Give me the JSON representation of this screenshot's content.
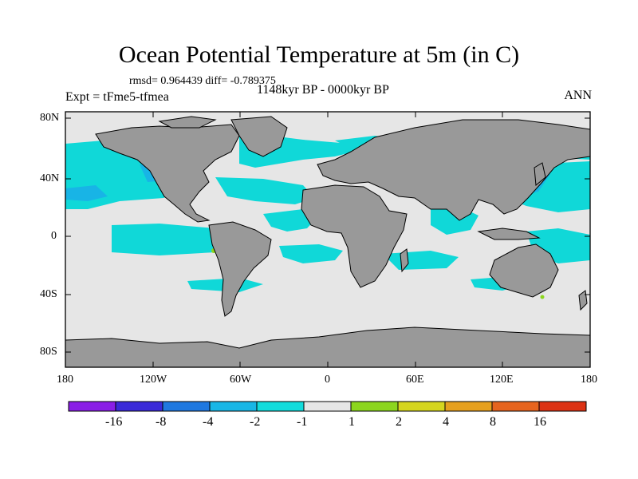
{
  "title": "Ocean Potential Temperature at 5m (in C)",
  "stats": "rmsd= 0.964439 diff= -0.789375",
  "experiment": "Expt = tFme5-tfmea",
  "period": "1148kyr BP - 0000kyr BP",
  "season": "ANN",
  "lat_labels": [
    "80N",
    "40N",
    "0",
    "40S",
    "80S"
  ],
  "lon_labels": [
    "180",
    "120W",
    "60W",
    "0",
    "60E",
    "120E",
    "180"
  ],
  "colorbar": {
    "labels": [
      "-16",
      "-8",
      "-4",
      "-2",
      "-1",
      "1",
      "2",
      "4",
      "8",
      "16"
    ],
    "colors": [
      "#8a1ee6",
      "#3a2ad8",
      "#1f78e0",
      "#18b6e6",
      "#12dcdc",
      "#e6e6e6",
      "#8cd61e",
      "#d6d61e",
      "#e6a01e",
      "#e6641e",
      "#dc3214"
    ]
  },
  "colors": {
    "ocean_neutral": "#e6e6e6",
    "land": "#999999",
    "anomaly_cool": "#10d8d8",
    "anomaly_cooler": "#18b4e6",
    "anomaly_cold": "#1f78e0",
    "anomaly_warm": "#8cd61e"
  }
}
